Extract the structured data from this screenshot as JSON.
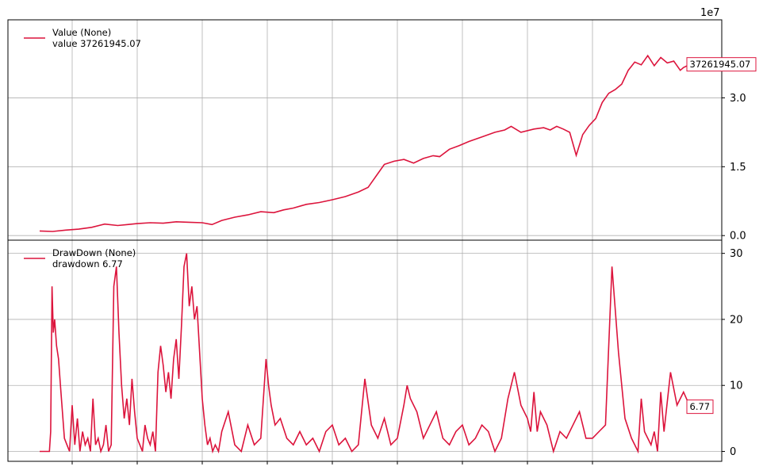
{
  "colors": {
    "series": "#dc143c",
    "grid": "#b0b0b0",
    "axis": "#000000"
  },
  "chart_data": [
    {
      "type": "line",
      "panel": "value",
      "title": "",
      "xlabel": "",
      "ylabel": "",
      "y_scale_label": "1e7",
      "y_scale_factor": 10000000,
      "ylim": [
        -0.1,
        4.7
      ],
      "yticks": [
        0.0,
        1.5,
        3.0
      ],
      "ytick_labels": [
        "0.0",
        "1.5",
        "3.0"
      ],
      "grid": true,
      "legend_position": "top-left",
      "legend": {
        "name": "Value (None)",
        "line2": "value 37261945.07"
      },
      "last_value_label": "37261945.07",
      "xlim": [
        0,
        1000
      ],
      "series": [
        {
          "name": "Value (None)",
          "x": [
            0,
            20,
            40,
            60,
            80,
            100,
            120,
            135,
            150,
            170,
            190,
            210,
            230,
            250,
            265,
            280,
            300,
            320,
            340,
            360,
            375,
            390,
            410,
            430,
            450,
            470,
            490,
            505,
            520,
            530,
            545,
            560,
            575,
            590,
            605,
            615,
            630,
            645,
            660,
            680,
            700,
            715,
            725,
            740,
            760,
            775,
            785,
            795,
            805,
            815,
            825,
            835,
            845,
            855,
            865,
            875,
            885,
            895,
            905,
            915,
            925,
            935,
            945,
            955,
            965,
            975,
            985,
            990,
            1000
          ],
          "values": [
            0.1,
            0.09,
            0.12,
            0.14,
            0.18,
            0.25,
            0.22,
            0.24,
            0.26,
            0.28,
            0.27,
            0.3,
            0.29,
            0.28,
            0.24,
            0.33,
            0.4,
            0.45,
            0.52,
            0.5,
            0.56,
            0.6,
            0.68,
            0.72,
            0.78,
            0.85,
            0.95,
            1.05,
            1.35,
            1.55,
            1.62,
            1.66,
            1.58,
            1.68,
            1.74,
            1.72,
            1.88,
            1.96,
            2.05,
            2.15,
            2.25,
            2.3,
            2.38,
            2.25,
            2.32,
            2.35,
            2.3,
            2.38,
            2.32,
            2.25,
            1.75,
            2.2,
            2.4,
            2.55,
            2.9,
            3.1,
            3.18,
            3.3,
            3.6,
            3.78,
            3.72,
            3.92,
            3.7,
            3.88,
            3.76,
            3.8,
            3.6,
            3.66,
            3.73
          ]
        }
      ]
    },
    {
      "type": "line",
      "panel": "drawdown",
      "title": "",
      "xlabel": "",
      "ylabel": "",
      "ylim": [
        -1.5,
        32
      ],
      "yticks": [
        0,
        10,
        20,
        30
      ],
      "ytick_labels": [
        "0",
        "10",
        "20",
        "30"
      ],
      "grid": true,
      "legend_position": "top-left",
      "legend": {
        "name": "DrawDown (None)",
        "line2": "drawdown 6.77"
      },
      "last_value_label": "6.77",
      "xlim": [
        0,
        1000
      ],
      "xticks": [
        50,
        150,
        250,
        350,
        450,
        550,
        650,
        750,
        850
      ],
      "series": [
        {
          "name": "DrawDown (None)",
          "x": [
            0,
            15,
            17,
            19,
            21,
            23,
            26,
            29,
            32,
            35,
            38,
            42,
            46,
            50,
            54,
            58,
            62,
            66,
            70,
            74,
            78,
            82,
            86,
            90,
            94,
            98,
            102,
            106,
            110,
            114,
            118,
            122,
            126,
            130,
            134,
            138,
            142,
            146,
            150,
            154,
            158,
            162,
            166,
            170,
            174,
            178,
            182,
            186,
            190,
            194,
            198,
            202,
            206,
            210,
            214,
            218,
            222,
            226,
            230,
            234,
            238,
            242,
            246,
            250,
            254,
            258,
            262,
            266,
            270,
            275,
            280,
            290,
            300,
            310,
            320,
            330,
            340,
            348,
            352,
            356,
            362,
            370,
            380,
            390,
            400,
            410,
            420,
            430,
            440,
            450,
            460,
            470,
            480,
            490,
            500,
            510,
            520,
            530,
            540,
            550,
            560,
            565,
            570,
            580,
            590,
            600,
            610,
            620,
            630,
            640,
            650,
            660,
            670,
            680,
            690,
            700,
            710,
            720,
            730,
            740,
            750,
            755,
            760,
            765,
            770,
            780,
            790,
            800,
            810,
            820,
            830,
            840,
            850,
            860,
            870,
            880,
            890,
            900,
            910,
            920,
            925,
            930,
            935,
            940,
            945,
            950,
            955,
            960,
            970,
            980,
            990,
            1000
          ],
          "values": [
            0,
            0,
            3,
            25,
            18,
            20,
            16,
            14,
            10,
            6,
            2,
            1,
            0,
            7,
            1,
            5,
            0,
            3,
            1,
            2,
            0,
            8,
            1,
            2,
            0,
            1,
            4,
            0,
            1,
            25,
            28,
            18,
            10,
            5,
            8,
            4,
            11,
            6,
            2,
            1,
            0,
            4,
            2,
            1,
            3,
            0,
            12,
            16,
            13,
            9,
            12,
            8,
            14,
            17,
            11,
            19,
            28,
            30,
            22,
            25,
            20,
            22,
            15,
            8,
            4,
            1,
            2,
            0,
            1,
            0,
            3,
            6,
            1,
            0,
            4,
            1,
            2,
            14,
            10,
            7,
            4,
            5,
            2,
            1,
            3,
            1,
            2,
            0,
            3,
            4,
            1,
            2,
            0,
            1,
            11,
            4,
            2,
            5,
            1,
            2,
            7,
            10,
            8,
            6,
            2,
            4,
            6,
            2,
            1,
            3,
            4,
            1,
            2,
            4,
            3,
            0,
            2,
            8,
            12,
            7,
            5,
            3,
            9,
            3,
            6,
            4,
            0,
            3,
            2,
            4,
            6,
            2,
            2,
            3,
            4,
            28,
            15,
            5,
            2,
            0,
            8,
            3,
            2,
            1,
            3,
            0,
            9,
            3,
            12,
            7,
            9,
            6.77
          ]
        }
      ]
    }
  ]
}
